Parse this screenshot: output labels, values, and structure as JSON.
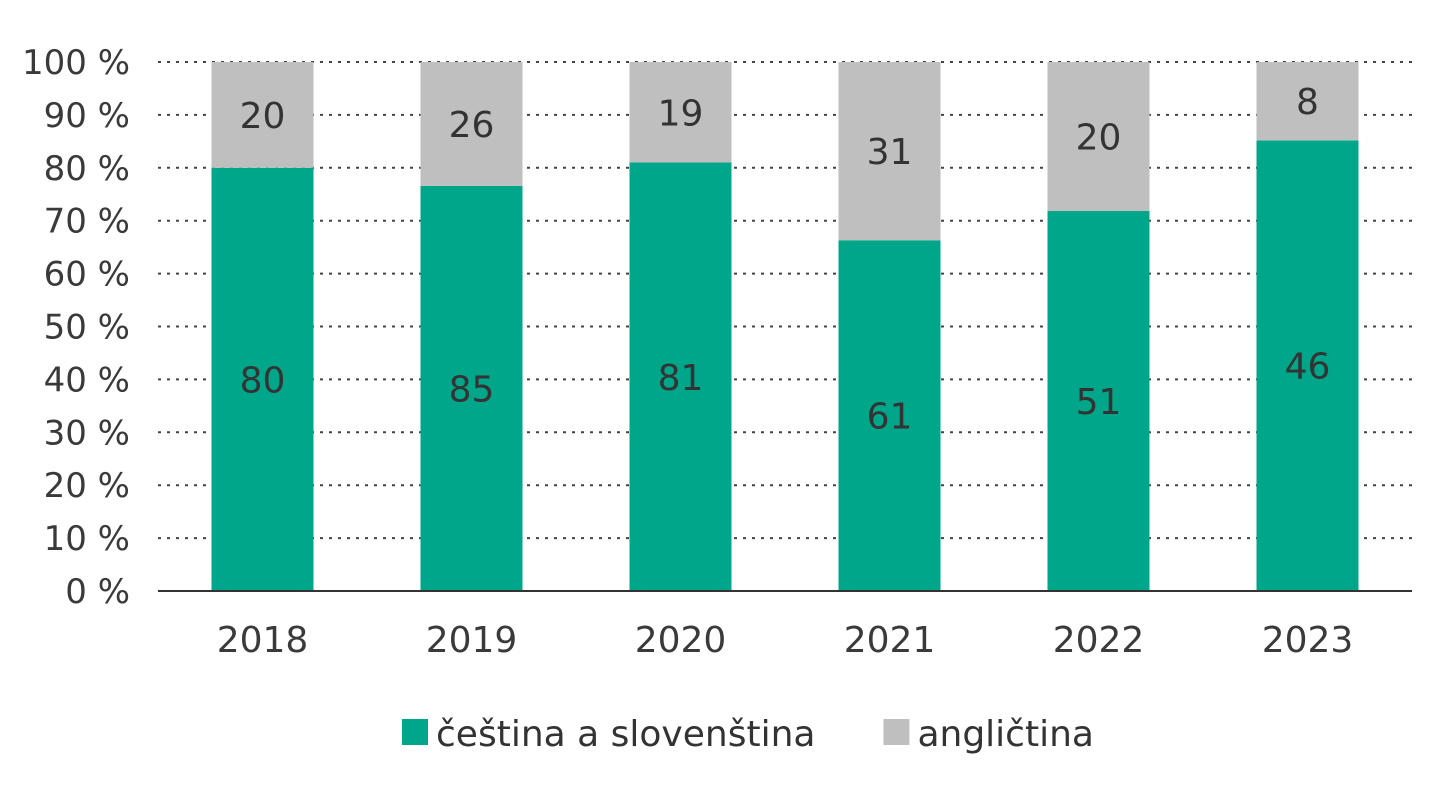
{
  "chart_data": {
    "type": "bar",
    "stacked": true,
    "normalized": true,
    "categories": [
      "2018",
      "2019",
      "2020",
      "2021",
      "2022",
      "2023"
    ],
    "series": [
      {
        "name": "čeština a slovenština",
        "color": "#00a68a",
        "values": [
          80,
          85,
          81,
          61,
          51,
          46
        ]
      },
      {
        "name": "angličtina",
        "color": "#bfbfbf",
        "values": [
          20,
          26,
          19,
          31,
          20,
          8
        ]
      }
    ],
    "y_ticks": [
      "0 %",
      "10 %",
      "20 %",
      "30 %",
      "40 %",
      "50 %",
      "60 %",
      "70 %",
      "80 %",
      "90 %",
      "100 %"
    ],
    "ylim": [
      0,
      100
    ],
    "grid": "dotted horizontal",
    "legend_position": "bottom"
  }
}
